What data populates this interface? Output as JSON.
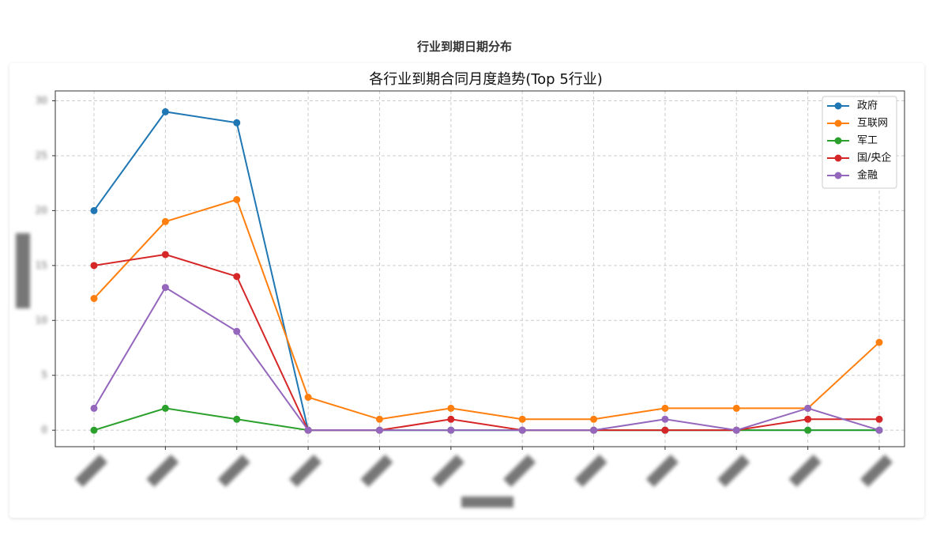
{
  "page_title": "行业到期日期分布",
  "chart_data": {
    "type": "line",
    "title": "各行业到期合同月度趋势(Top 5行业)",
    "categories": [
      null,
      null,
      null,
      null,
      null,
      null,
      null,
      null,
      null,
      null,
      null,
      null
    ],
    "series": [
      {
        "name": "政府",
        "color": "#1f77b4",
        "values": [
          20,
          29,
          28,
          0,
          0,
          0,
          0,
          0,
          0,
          0,
          0,
          0
        ]
      },
      {
        "name": "互联网",
        "color": "#ff7f0e",
        "values": [
          12,
          19,
          21,
          3,
          1,
          2,
          1,
          1,
          2,
          2,
          2,
          8
        ]
      },
      {
        "name": "军工",
        "color": "#2ca02c",
        "values": [
          0,
          2,
          1,
          0,
          0,
          0,
          0,
          0,
          0,
          0,
          0,
          0
        ]
      },
      {
        "name": "国/央企",
        "color": "#d62728",
        "values": [
          15,
          16,
          14,
          0,
          0,
          1,
          0,
          0,
          0,
          0,
          1,
          1
        ]
      },
      {
        "name": "金融",
        "color": "#9467bd",
        "values": [
          2,
          13,
          9,
          0,
          0,
          0,
          0,
          0,
          1,
          0,
          2,
          0
        ]
      }
    ],
    "ylim": [
      -1.5,
      30.9
    ],
    "yticks": [
      0,
      5,
      10,
      15,
      20,
      25,
      30
    ],
    "grid": true,
    "legend": "upper right"
  }
}
